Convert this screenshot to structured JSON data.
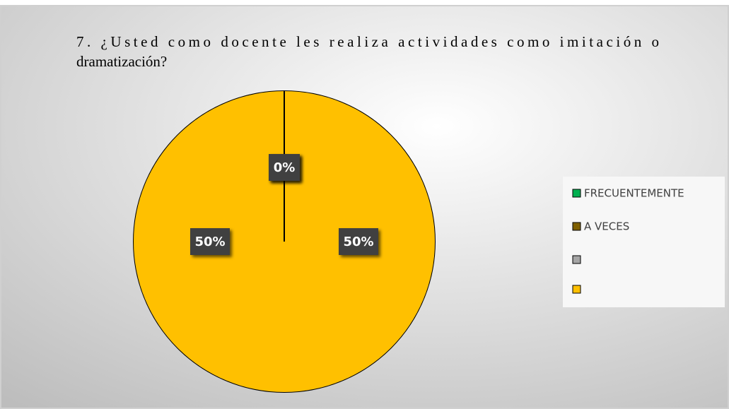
{
  "chart_data": {
    "type": "pie",
    "title": "7. ¿Usted como docente les realiza actividades como imitación o dramatización?",
    "categories": [
      "FRECUENTEMENTE",
      "A VECES",
      null,
      null
    ],
    "values": [
      0,
      0,
      50,
      50
    ],
    "value_labels": [
      "0%",
      "0%",
      "50%",
      "50%"
    ],
    "colors": [
      "#00b050",
      "#7f6000",
      "#a5a5a5",
      "#ffc000"
    ],
    "slice_color": "#ffc000",
    "legend": "right"
  }
}
